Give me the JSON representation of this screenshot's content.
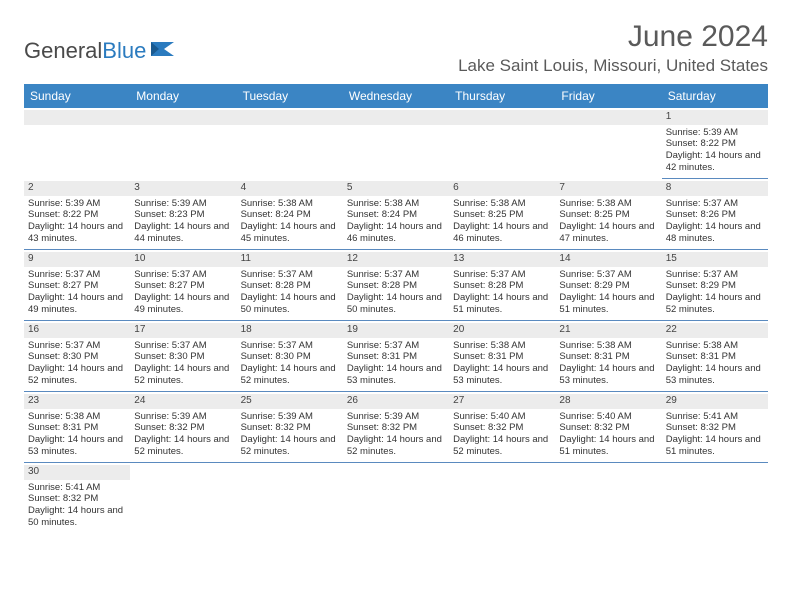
{
  "logo": {
    "text1": "General",
    "text2": "Blue"
  },
  "title": "June 2024",
  "location": "Lake Saint Louis, Missouri, United States",
  "colors": {
    "header_bg": "#3b85c4",
    "header_text": "#ffffff",
    "daynum_bg": "#ececec",
    "border": "#5a8abf",
    "text": "#333333",
    "title_text": "#5a5a5a"
  },
  "typography": {
    "title_fontsize": 30,
    "location_fontsize": 17,
    "dayheader_fontsize": 12,
    "cell_fontsize": 9.5
  },
  "day_names": [
    "Sunday",
    "Monday",
    "Tuesday",
    "Wednesday",
    "Thursday",
    "Friday",
    "Saturday"
  ],
  "weeks": [
    [
      null,
      null,
      null,
      null,
      null,
      null,
      {
        "n": "1",
        "sr": "Sunrise: 5:39 AM",
        "ss": "Sunset: 8:22 PM",
        "dl": "Daylight: 14 hours and 42 minutes."
      }
    ],
    [
      {
        "n": "2",
        "sr": "Sunrise: 5:39 AM",
        "ss": "Sunset: 8:22 PM",
        "dl": "Daylight: 14 hours and 43 minutes."
      },
      {
        "n": "3",
        "sr": "Sunrise: 5:39 AM",
        "ss": "Sunset: 8:23 PM",
        "dl": "Daylight: 14 hours and 44 minutes."
      },
      {
        "n": "4",
        "sr": "Sunrise: 5:38 AM",
        "ss": "Sunset: 8:24 PM",
        "dl": "Daylight: 14 hours and 45 minutes."
      },
      {
        "n": "5",
        "sr": "Sunrise: 5:38 AM",
        "ss": "Sunset: 8:24 PM",
        "dl": "Daylight: 14 hours and 46 minutes."
      },
      {
        "n": "6",
        "sr": "Sunrise: 5:38 AM",
        "ss": "Sunset: 8:25 PM",
        "dl": "Daylight: 14 hours and 46 minutes."
      },
      {
        "n": "7",
        "sr": "Sunrise: 5:38 AM",
        "ss": "Sunset: 8:25 PM",
        "dl": "Daylight: 14 hours and 47 minutes."
      },
      {
        "n": "8",
        "sr": "Sunrise: 5:37 AM",
        "ss": "Sunset: 8:26 PM",
        "dl": "Daylight: 14 hours and 48 minutes."
      }
    ],
    [
      {
        "n": "9",
        "sr": "Sunrise: 5:37 AM",
        "ss": "Sunset: 8:27 PM",
        "dl": "Daylight: 14 hours and 49 minutes."
      },
      {
        "n": "10",
        "sr": "Sunrise: 5:37 AM",
        "ss": "Sunset: 8:27 PM",
        "dl": "Daylight: 14 hours and 49 minutes."
      },
      {
        "n": "11",
        "sr": "Sunrise: 5:37 AM",
        "ss": "Sunset: 8:28 PM",
        "dl": "Daylight: 14 hours and 50 minutes."
      },
      {
        "n": "12",
        "sr": "Sunrise: 5:37 AM",
        "ss": "Sunset: 8:28 PM",
        "dl": "Daylight: 14 hours and 50 minutes."
      },
      {
        "n": "13",
        "sr": "Sunrise: 5:37 AM",
        "ss": "Sunset: 8:28 PM",
        "dl": "Daylight: 14 hours and 51 minutes."
      },
      {
        "n": "14",
        "sr": "Sunrise: 5:37 AM",
        "ss": "Sunset: 8:29 PM",
        "dl": "Daylight: 14 hours and 51 minutes."
      },
      {
        "n": "15",
        "sr": "Sunrise: 5:37 AM",
        "ss": "Sunset: 8:29 PM",
        "dl": "Daylight: 14 hours and 52 minutes."
      }
    ],
    [
      {
        "n": "16",
        "sr": "Sunrise: 5:37 AM",
        "ss": "Sunset: 8:30 PM",
        "dl": "Daylight: 14 hours and 52 minutes."
      },
      {
        "n": "17",
        "sr": "Sunrise: 5:37 AM",
        "ss": "Sunset: 8:30 PM",
        "dl": "Daylight: 14 hours and 52 minutes."
      },
      {
        "n": "18",
        "sr": "Sunrise: 5:37 AM",
        "ss": "Sunset: 8:30 PM",
        "dl": "Daylight: 14 hours and 52 minutes."
      },
      {
        "n": "19",
        "sr": "Sunrise: 5:37 AM",
        "ss": "Sunset: 8:31 PM",
        "dl": "Daylight: 14 hours and 53 minutes."
      },
      {
        "n": "20",
        "sr": "Sunrise: 5:38 AM",
        "ss": "Sunset: 8:31 PM",
        "dl": "Daylight: 14 hours and 53 minutes."
      },
      {
        "n": "21",
        "sr": "Sunrise: 5:38 AM",
        "ss": "Sunset: 8:31 PM",
        "dl": "Daylight: 14 hours and 53 minutes."
      },
      {
        "n": "22",
        "sr": "Sunrise: 5:38 AM",
        "ss": "Sunset: 8:31 PM",
        "dl": "Daylight: 14 hours and 53 minutes."
      }
    ],
    [
      {
        "n": "23",
        "sr": "Sunrise: 5:38 AM",
        "ss": "Sunset: 8:31 PM",
        "dl": "Daylight: 14 hours and 53 minutes."
      },
      {
        "n": "24",
        "sr": "Sunrise: 5:39 AM",
        "ss": "Sunset: 8:32 PM",
        "dl": "Daylight: 14 hours and 52 minutes."
      },
      {
        "n": "25",
        "sr": "Sunrise: 5:39 AM",
        "ss": "Sunset: 8:32 PM",
        "dl": "Daylight: 14 hours and 52 minutes."
      },
      {
        "n": "26",
        "sr": "Sunrise: 5:39 AM",
        "ss": "Sunset: 8:32 PM",
        "dl": "Daylight: 14 hours and 52 minutes."
      },
      {
        "n": "27",
        "sr": "Sunrise: 5:40 AM",
        "ss": "Sunset: 8:32 PM",
        "dl": "Daylight: 14 hours and 52 minutes."
      },
      {
        "n": "28",
        "sr": "Sunrise: 5:40 AM",
        "ss": "Sunset: 8:32 PM",
        "dl": "Daylight: 14 hours and 51 minutes."
      },
      {
        "n": "29",
        "sr": "Sunrise: 5:41 AM",
        "ss": "Sunset: 8:32 PM",
        "dl": "Daylight: 14 hours and 51 minutes."
      }
    ],
    [
      {
        "n": "30",
        "sr": "Sunrise: 5:41 AM",
        "ss": "Sunset: 8:32 PM",
        "dl": "Daylight: 14 hours and 50 minutes."
      },
      null,
      null,
      null,
      null,
      null,
      null
    ]
  ]
}
